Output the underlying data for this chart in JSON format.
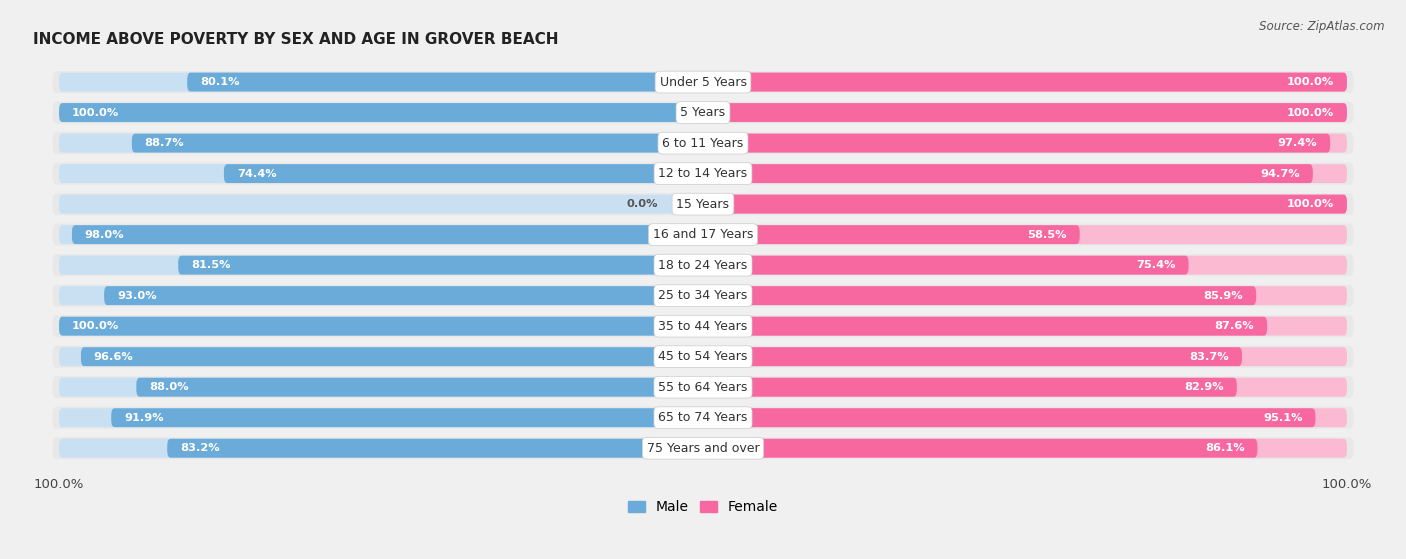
{
  "title": "INCOME ABOVE POVERTY BY SEX AND AGE IN GROVER BEACH",
  "source": "Source: ZipAtlas.com",
  "categories": [
    "Under 5 Years",
    "5 Years",
    "6 to 11 Years",
    "12 to 14 Years",
    "15 Years",
    "16 and 17 Years",
    "18 to 24 Years",
    "25 to 34 Years",
    "35 to 44 Years",
    "45 to 54 Years",
    "55 to 64 Years",
    "65 to 74 Years",
    "75 Years and over"
  ],
  "male_values": [
    80.1,
    100.0,
    88.7,
    74.4,
    0.0,
    98.0,
    81.5,
    93.0,
    100.0,
    96.6,
    88.0,
    91.9,
    83.2
  ],
  "female_values": [
    100.0,
    100.0,
    97.4,
    94.7,
    100.0,
    58.5,
    75.4,
    85.9,
    87.6,
    83.7,
    82.9,
    95.1,
    86.1
  ],
  "male_color": "#6aabda",
  "female_color": "#f768a1",
  "male_color_light": "#c9dff2",
  "female_color_light": "#fbbad1",
  "row_bg_color": "#e8e8e8",
  "background_color": "#f0f0f0",
  "label_bg_color": "#ffffff",
  "figsize": [
    14.06,
    5.59
  ],
  "dpi": 100
}
